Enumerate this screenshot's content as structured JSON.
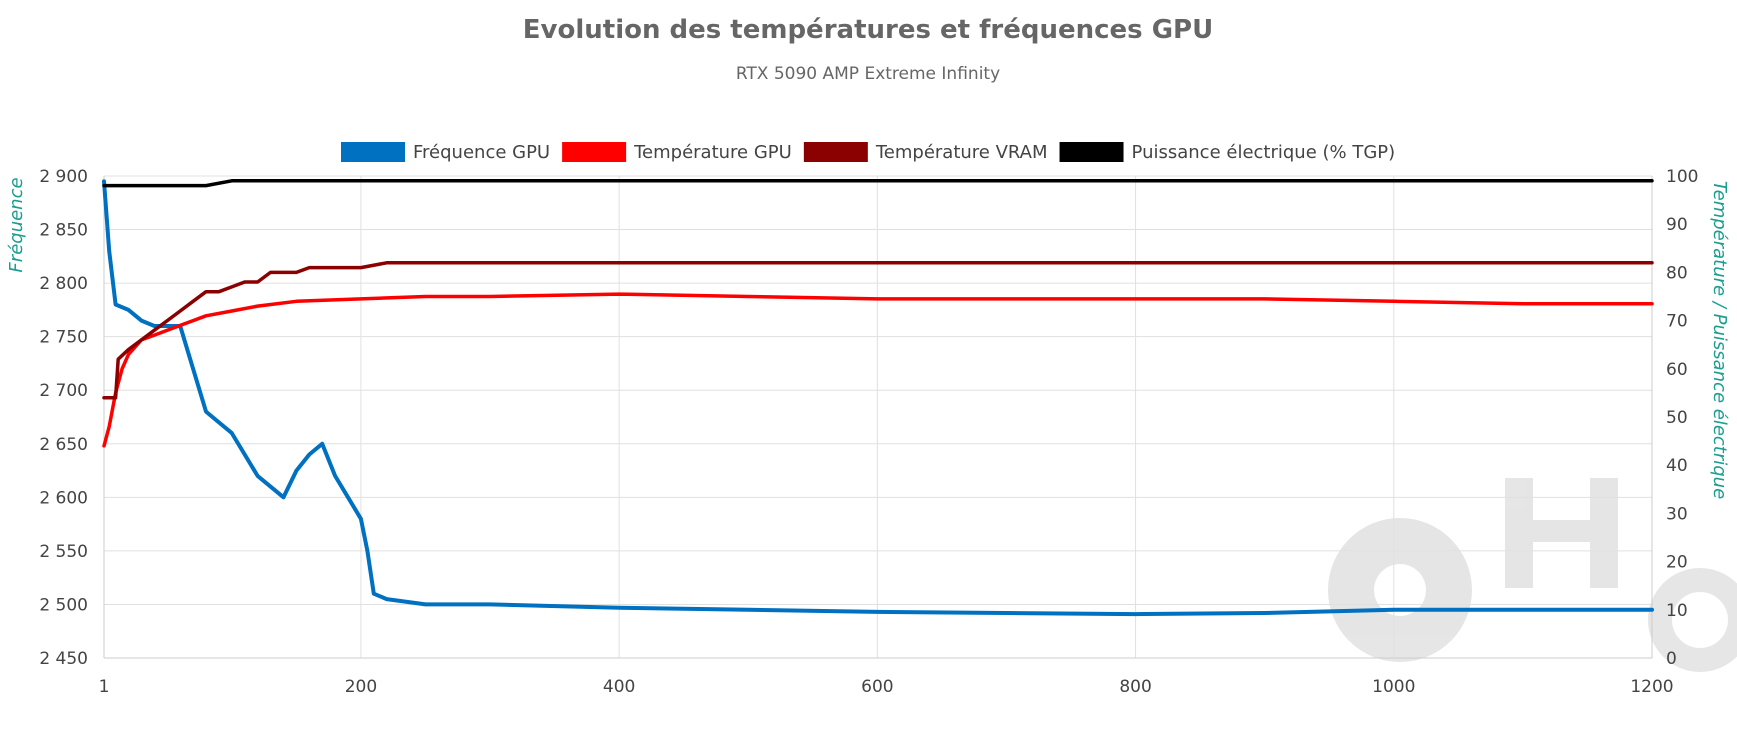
{
  "chart_data": {
    "type": "line",
    "title": "Evolution des températures et fréquences GPU",
    "subtitle": "RTX 5090 AMP Extreme Infinity",
    "legend_position": "top",
    "grid": true,
    "x_axis": {
      "range": [
        1,
        1200
      ],
      "ticks": [
        1,
        200,
        400,
        600,
        800,
        1000,
        1200
      ]
    },
    "y_axis_left": {
      "label": "Fréquence",
      "range": [
        2450,
        2900
      ],
      "ticks": [
        "2 450",
        "2 500",
        "2 550",
        "2 600",
        "2 650",
        "2 700",
        "2 750",
        "2 800",
        "2 850",
        "2 900"
      ],
      "tick_values": [
        2450,
        2500,
        2550,
        2600,
        2650,
        2700,
        2750,
        2800,
        2850,
        2900
      ]
    },
    "y_axis_right": {
      "label": "Température / Puissance électrique",
      "range": [
        0,
        100
      ],
      "ticks": [
        "0",
        "10",
        "20",
        "30",
        "40",
        "50",
        "60",
        "70",
        "80",
        "90",
        "100"
      ],
      "tick_values": [
        0,
        10,
        20,
        30,
        40,
        50,
        60,
        70,
        80,
        90,
        100
      ]
    },
    "series": [
      {
        "name": "Fréquence GPU",
        "axis": "left",
        "color": "#0070c0",
        "x": [
          1,
          5,
          10,
          20,
          30,
          40,
          50,
          60,
          70,
          80,
          90,
          100,
          110,
          120,
          130,
          140,
          150,
          160,
          170,
          180,
          190,
          200,
          205,
          210,
          220,
          250,
          300,
          400,
          500,
          600,
          700,
          800,
          900,
          1000,
          1100,
          1200
        ],
        "y": [
          2895,
          2830,
          2780,
          2775,
          2765,
          2760,
          2760,
          2760,
          2720,
          2680,
          2670,
          2660,
          2640,
          2620,
          2610,
          2600,
          2625,
          2640,
          2650,
          2620,
          2600,
          2580,
          2550,
          2510,
          2505,
          2500,
          2500,
          2497,
          2495,
          2493,
          2492,
          2491,
          2492,
          2495,
          2495,
          2495
        ]
      },
      {
        "name": "Température GPU",
        "axis": "right",
        "color": "#ff0000",
        "x": [
          1,
          5,
          10,
          15,
          20,
          30,
          40,
          50,
          60,
          70,
          80,
          100,
          120,
          150,
          200,
          250,
          300,
          400,
          500,
          600,
          700,
          800,
          900,
          1000,
          1100,
          1200
        ],
        "y": [
          44,
          48,
          55,
          60,
          63,
          66,
          67,
          68,
          69,
          70,
          71,
          72,
          73,
          74,
          74.5,
          75,
          75,
          75.5,
          75,
          74.5,
          74.5,
          74.5,
          74.5,
          74,
          73.5,
          73.5
        ]
      },
      {
        "name": "Température VRAM",
        "axis": "right",
        "color": "#8b0000",
        "x": [
          1,
          10,
          12,
          20,
          30,
          40,
          50,
          60,
          70,
          80,
          90,
          100,
          110,
          120,
          130,
          140,
          150,
          160,
          180,
          200,
          220,
          250,
          400,
          600,
          800,
          1000,
          1040,
          1100,
          1160,
          1200
        ],
        "y": [
          54,
          54,
          62,
          64,
          66,
          68,
          70,
          72,
          74,
          76,
          76,
          77,
          78,
          78,
          80,
          80,
          80,
          81,
          81,
          81,
          82,
          82,
          82,
          82,
          82,
          82,
          82,
          82,
          82,
          82
        ]
      },
      {
        "name": "Puissance électrique (% TGP)",
        "axis": "right",
        "color": "#000000",
        "x": [
          1,
          10,
          20,
          40,
          60,
          80,
          100,
          150,
          200,
          250,
          300,
          400,
          600,
          800,
          1000,
          1200
        ],
        "y": [
          98,
          98,
          98,
          98,
          98,
          98,
          99,
          99,
          99,
          99,
          99,
          99,
          99,
          99,
          99,
          99
        ]
      }
    ]
  }
}
